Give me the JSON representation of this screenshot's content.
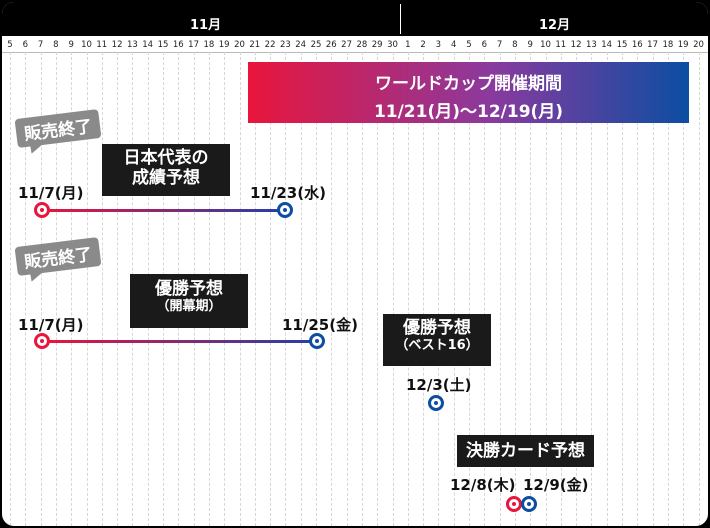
{
  "months": [
    {
      "label": "11月",
      "days": [
        5,
        6,
        7,
        8,
        9,
        10,
        11,
        12,
        13,
        14,
        15,
        16,
        17,
        18,
        19,
        20,
        21,
        22,
        23,
        24,
        25,
        26,
        27,
        28,
        29,
        30
      ]
    },
    {
      "label": "12月",
      "days": [
        1,
        2,
        3,
        4,
        5,
        6,
        7,
        8,
        9,
        10,
        11,
        12,
        13,
        14,
        15,
        16,
        17,
        18,
        19,
        20
      ]
    }
  ],
  "world_cup": {
    "title": "ワールドカップ開催期間",
    "period": "11/21(月)〜12/19(月)"
  },
  "events": [
    {
      "badge": "販売終了",
      "title": "日本代表の",
      "title2": "成績予想",
      "start_label": "11/7(月)",
      "end_label": "11/23(水)"
    },
    {
      "badge": "販売終了",
      "title": "優勝予想",
      "subtitle": "（開幕期）",
      "start_label": "11/7(月)",
      "end_label": "11/25(金)"
    },
    {
      "title": "優勝予想",
      "subtitle": "（ベスト16）",
      "end_label": "12/3(土)"
    },
    {
      "title": "決勝カード予想",
      "start_label": "12/8(木)",
      "end_label": "12/9(金)"
    }
  ],
  "colors": {
    "start_dot": "#e8153c",
    "end_dot": "#0b4ea2",
    "badge_gray": "#8a8a8a",
    "label_black": "#1a1a1a"
  }
}
